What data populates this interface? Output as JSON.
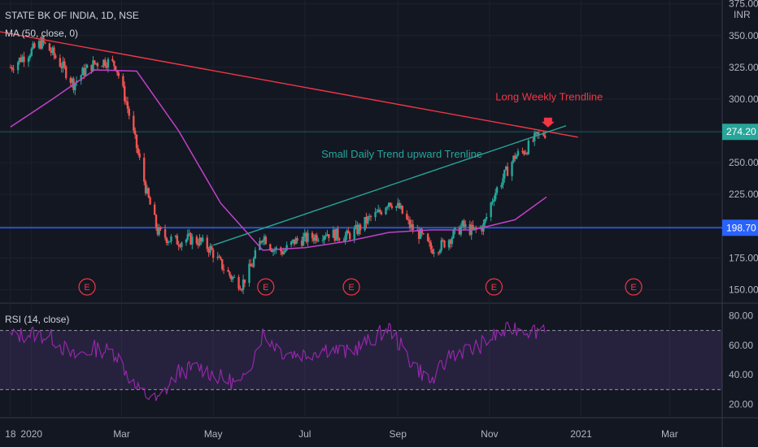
{
  "header": {
    "symbol_title": "STATE BK OF INDIA, 1D, NSE",
    "ma_label": "MA (50, close, 0)",
    "rsi_label": "RSI (14, close)",
    "currency": "INR"
  },
  "chart_data": [
    {
      "type": "candlestick",
      "title": "STATE BK OF INDIA, 1D, NSE",
      "ylabel": "INR",
      "ylim": [
        140,
        378
      ],
      "y_ticks": [
        "150.00",
        "175.00",
        "200.00",
        "225.00",
        "250.00",
        "275.00",
        "300.00",
        "325.00",
        "350.00",
        "375.00"
      ],
      "x_ticks": [
        "18",
        "2020",
        "Mar",
        "May",
        "Jul",
        "Sep",
        "Nov",
        "2021",
        "Mar"
      ],
      "price_labels": [
        {
          "value": 274.2,
          "text": "274.20",
          "color": "#26a69a"
        },
        {
          "value": 198.7,
          "text": "198.70",
          "color": "#2962ff"
        }
      ],
      "series": [
        {
          "name": "Close",
          "x": [
            "2019-12-18",
            "2019-12-25",
            "2020-01-01",
            "2020-01-08",
            "2020-01-15",
            "2020-01-22",
            "2020-01-29",
            "2020-02-05",
            "2020-02-12",
            "2020-02-19",
            "2020-02-26",
            "2020-03-04",
            "2020-03-11",
            "2020-03-18",
            "2020-03-25",
            "2020-04-01",
            "2020-04-08",
            "2020-04-15",
            "2020-04-22",
            "2020-04-29",
            "2020-05-06",
            "2020-05-13",
            "2020-05-20",
            "2020-05-27",
            "2020-06-03",
            "2020-06-10",
            "2020-06-17",
            "2020-06-24",
            "2020-07-01",
            "2020-07-08",
            "2020-07-15",
            "2020-07-22",
            "2020-07-29",
            "2020-08-05",
            "2020-08-12",
            "2020-08-19",
            "2020-08-26",
            "2020-09-02",
            "2020-09-09",
            "2020-09-16",
            "2020-09-23",
            "2020-09-30",
            "2020-10-07",
            "2020-10-14",
            "2020-10-21",
            "2020-10-28",
            "2020-11-04",
            "2020-11-11",
            "2020-11-18",
            "2020-11-25",
            "2020-12-02",
            "2020-12-09"
          ],
          "values": [
            325,
            332,
            338,
            345,
            336,
            325,
            312,
            322,
            328,
            330,
            327,
            298,
            262,
            225,
            196,
            190,
            188,
            190,
            188,
            182,
            170,
            160,
            154,
            170,
            193,
            182,
            180,
            188,
            190,
            192,
            195,
            193,
            192,
            197,
            205,
            210,
            220,
            214,
            200,
            193,
            182,
            185,
            192,
            200,
            196,
            200,
            225,
            240,
            255,
            260,
            270,
            274
          ]
        },
        {
          "name": "MA (50, close, 0)",
          "x": [
            "2019-12-18",
            "2020-01-15",
            "2020-02-12",
            "2020-03-11",
            "2020-04-08",
            "2020-05-06",
            "2020-06-03",
            "2020-07-01",
            "2020-07-29",
            "2020-08-26",
            "2020-09-23",
            "2020-10-21",
            "2020-11-18",
            "2020-12-09"
          ],
          "values": [
            278,
            300,
            323,
            322,
            275,
            218,
            181,
            183,
            188,
            195,
            197,
            197,
            205,
            223
          ]
        }
      ],
      "annotations": [
        {
          "text": "Long Weekly Trendline",
          "color": "#f23645"
        },
        {
          "text": "Small Daily Trend upward Trenline",
          "color": "#26a69a"
        }
      ],
      "trendlines": [
        {
          "name": "Long Weekly Trendline",
          "x": [
            "2019-12-11",
            "2020-12-30"
          ],
          "y": [
            353,
            270
          ],
          "color": "#f23645"
        },
        {
          "name": "Small Daily Trend upward Trenline",
          "x": [
            "2020-05-01",
            "2020-12-22"
          ],
          "y": [
            185,
            279
          ],
          "color": "#26a69a"
        }
      ],
      "horizontal_lines": [
        {
          "value": 198.7,
          "color": "#2962ff"
        },
        {
          "value": 274.2,
          "color": "#26a69a"
        }
      ],
      "earnings_markers": {
        "label": "E",
        "x": [
          "2020-02-07",
          "2020-06-05",
          "2020-08-01",
          "2020-11-04",
          "2021-02-05"
        ]
      }
    },
    {
      "type": "line",
      "title": "RSI (14, close)",
      "ylim": [
        12,
        88
      ],
      "y_ticks": [
        "20.00",
        "40.00",
        "60.00",
        "80.00"
      ],
      "bands": [
        30,
        70
      ],
      "series": [
        {
          "name": "RSI (14, close)",
          "x": [
            "2019-12-18",
            "2020-01-01",
            "2020-01-15",
            "2020-01-29",
            "2020-02-12",
            "2020-02-26",
            "2020-03-11",
            "2020-03-25",
            "2020-04-08",
            "2020-04-22",
            "2020-05-06",
            "2020-05-20",
            "2020-06-03",
            "2020-06-17",
            "2020-07-01",
            "2020-07-15",
            "2020-07-29",
            "2020-08-12",
            "2020-08-26",
            "2020-09-09",
            "2020-09-23",
            "2020-10-07",
            "2020-10-21",
            "2020-11-04",
            "2020-11-18",
            "2020-12-02",
            "2020-12-09"
          ],
          "values": [
            66,
            68,
            65,
            52,
            58,
            55,
            30,
            22,
            42,
            45,
            38,
            33,
            68,
            55,
            54,
            58,
            55,
            62,
            72,
            50,
            35,
            55,
            57,
            66,
            72,
            70,
            74
          ]
        }
      ]
    }
  ]
}
